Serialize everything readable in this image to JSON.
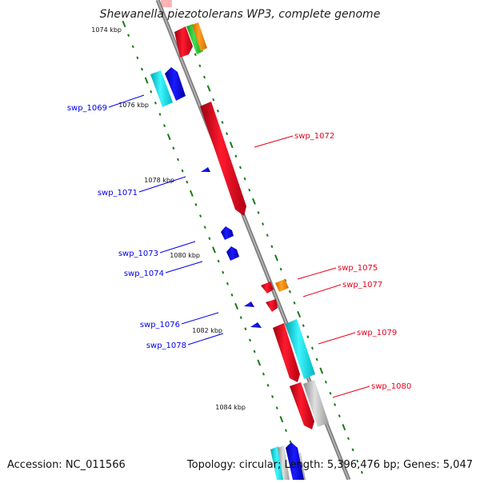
{
  "title": "Shewanella piezotolerans WP3, complete genome",
  "footer": {
    "accession": "Accession: NC_011566",
    "topology": "Topology: circular; Length: 5,396,476 bp; Genes: 5,047"
  },
  "colors": {
    "forward": "#e8001b",
    "reverse": "#0000ee",
    "backbone": "#8c8c8c",
    "tick": "#1a7a1a",
    "other_cyan": "#00d8e0",
    "other_orange": "#ff8c00",
    "other_green": "#22cc33",
    "other_grey": "#b0b0b0"
  },
  "kbp_labels": [
    "1074 kbp",
    "1076 kbp",
    "1078 kbp",
    "1080 kbp",
    "1082 kbp",
    "1084 kbp"
  ],
  "gene_labels": {
    "forward": [
      "swp_1072",
      "swp_1075",
      "swp_1077",
      "swp_1079",
      "swp_1080"
    ],
    "reverse": [
      "swp_1069",
      "swp_1071",
      "swp_1073",
      "swp_1074",
      "swp_1076",
      "swp_1078"
    ]
  }
}
